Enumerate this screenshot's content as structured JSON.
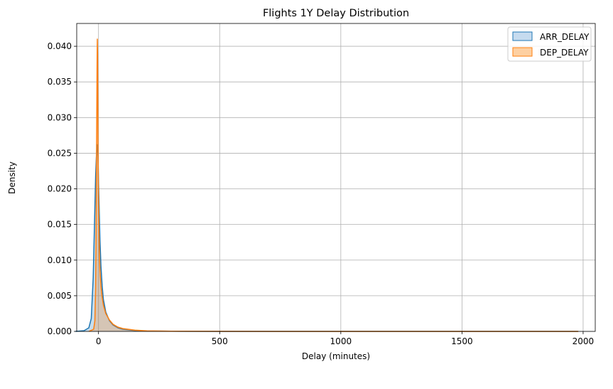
{
  "chart_data": {
    "type": "area",
    "title": "Flights 1Y Delay Distribution",
    "xlabel": "Delay (minutes)",
    "ylabel": "Density",
    "xlim": [
      -90,
      2050
    ],
    "ylim": [
      0,
      0.0432
    ],
    "xticks": [
      0,
      500,
      1000,
      1500,
      2000
    ],
    "xtick_labels": [
      "0",
      "500",
      "1000",
      "1500",
      "2000"
    ],
    "yticks": [
      0.0,
      0.005,
      0.01,
      0.015,
      0.02,
      0.025,
      0.03,
      0.035,
      0.04
    ],
    "ytick_labels": [
      "0.000",
      "0.005",
      "0.010",
      "0.015",
      "0.020",
      "0.025",
      "0.030",
      "0.035",
      "0.040"
    ],
    "grid": true,
    "legend_position": "top-right",
    "series": [
      {
        "name": "ARR_DELAY",
        "color": "#1f77b4",
        "fill": "#c6dbef",
        "x": [
          -95,
          -60,
          -40,
          -30,
          -22,
          -16,
          -12,
          -9,
          -6,
          -4,
          -2,
          0,
          3,
          6,
          10,
          15,
          20,
          30,
          45,
          60,
          80,
          100,
          150,
          200,
          300,
          500,
          800,
          1200,
          1600,
          1980
        ],
        "y": [
          0,
          0.0001,
          0.0005,
          0.0018,
          0.0075,
          0.016,
          0.0218,
          0.0244,
          0.0262,
          0.0258,
          0.0245,
          0.021,
          0.0168,
          0.0128,
          0.0092,
          0.0064,
          0.0045,
          0.0027,
          0.0015,
          0.0009,
          0.0005,
          0.0003,
          0.00012,
          5e-05,
          2e-05,
          5e-06,
          0,
          0,
          0,
          0
        ]
      },
      {
        "name": "DEP_DELAY",
        "color": "#ff7f0e",
        "fill": "#fdd0a2",
        "x": [
          -40,
          -20,
          -15,
          -12,
          -10,
          -8,
          -6,
          -5,
          -4,
          -3,
          -2,
          0,
          2,
          4,
          6,
          10,
          15,
          20,
          30,
          45,
          60,
          80,
          100,
          150,
          200,
          300,
          500,
          800,
          1200,
          1600,
          1980
        ],
        "y": [
          0,
          0.0003,
          0.0015,
          0.006,
          0.014,
          0.026,
          0.037,
          0.041,
          0.039,
          0.033,
          0.026,
          0.018,
          0.0135,
          0.0105,
          0.0085,
          0.0064,
          0.0048,
          0.0037,
          0.0025,
          0.0016,
          0.001,
          0.0006,
          0.0004,
          0.00018,
          8e-05,
          3e-05,
          1e-05,
          0,
          0,
          0,
          0
        ]
      }
    ]
  }
}
